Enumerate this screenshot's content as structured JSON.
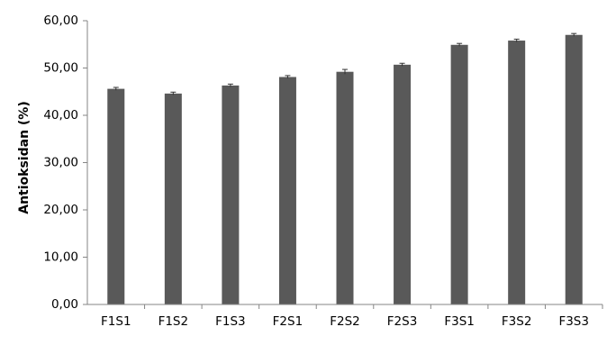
{
  "chart_data": {
    "type": "bar",
    "title": "",
    "xlabel": "",
    "ylabel": "Antioksidan (%)",
    "categories": [
      "F1S1",
      "F1S2",
      "F1S3",
      "F2S1",
      "F2S2",
      "F2S3",
      "F3S1",
      "F3S2",
      "F3S3"
    ],
    "values": [
      45.6,
      44.6,
      46.3,
      48.1,
      49.2,
      50.7,
      54.9,
      55.8,
      57.0
    ],
    "errors": [
      0.3,
      0.3,
      0.3,
      0.3,
      0.5,
      0.3,
      0.3,
      0.3,
      0.3
    ],
    "ylim": [
      0,
      60
    ],
    "y_ticks": [
      0,
      10,
      20,
      30,
      40,
      50,
      60
    ],
    "y_tick_labels": [
      "0,00",
      "10,00",
      "20,00",
      "30,00",
      "40,00",
      "50,00",
      "60,00"
    ],
    "grid": false,
    "legend": "none",
    "bar_color": "#595959",
    "axis_color": "#868686"
  }
}
